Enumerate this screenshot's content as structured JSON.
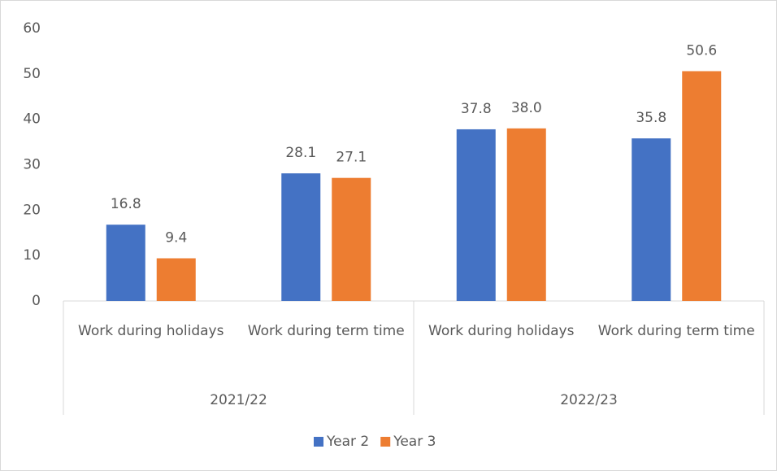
{
  "chart_data": {
    "type": "bar",
    "groups": [
      {
        "name": "2021/22",
        "categories": [
          "Work during holidays",
          "Work during term time"
        ]
      },
      {
        "name": "2022/23",
        "categories": [
          "Work during holidays",
          "Work during term time"
        ]
      }
    ],
    "series": [
      {
        "name": "Year 2",
        "color": "#4472c4",
        "values": [
          16.8,
          28.1,
          37.8,
          35.8
        ],
        "value_labels": [
          "16.8",
          "28.1",
          "37.8",
          "35.8"
        ]
      },
      {
        "name": "Year 3",
        "color": "#ed7d31",
        "values": [
          9.4,
          27.1,
          38.0,
          50.6
        ],
        "value_labels": [
          "9.4",
          "27.1",
          "38.0",
          "50.6"
        ]
      }
    ],
    "ylim": [
      0,
      60
    ],
    "yticks": [
      0,
      10,
      20,
      30,
      40,
      50,
      60
    ],
    "grid": false,
    "legend": "bottom"
  }
}
